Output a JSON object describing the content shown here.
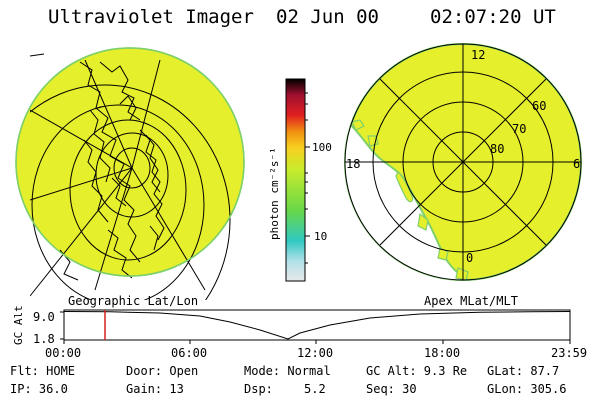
{
  "header": {
    "instrument": "Ultraviolet Imager",
    "date": "02 Jun 00",
    "time": "02:07:20 UT"
  },
  "left_panel": {
    "caption": "Geographic Lat/Lon"
  },
  "right_panel": {
    "caption": "Apex MLat/MLT",
    "lat_labels": [
      "60",
      "70",
      "80"
    ],
    "mlt_labels": [
      "12",
      "18",
      "6",
      "0"
    ]
  },
  "colorbar": {
    "unit_label": "photon cm⁻²s⁻¹",
    "tick_labels": [
      "100",
      "10"
    ]
  },
  "timeline": {
    "ylabel": "GC Alt",
    "y_ticks": [
      "9.0",
      "1.8"
    ],
    "x_ticks": [
      "00:00",
      "06:00",
      "12:00",
      "18:00",
      "23:59"
    ],
    "marker_time": "02:07"
  },
  "status": {
    "flt": "Flt: HOME",
    "ip": "IP: 36.0",
    "door": "Door: Open",
    "gain": "Gain: 13",
    "mode": "Mode: Normal",
    "dsp_label": "Dsp:",
    "dsp_value": "5.2",
    "gc_alt": "GC Alt: 9.3 Re",
    "seq": "Seq: 30",
    "glat": "GLat: 87.7",
    "glon": "GLon: 305.6"
  },
  "colors": {
    "image_fill": "#e6ef2c",
    "image_edge": "#7fd06a",
    "marker": "#d42020",
    "colorbar_stops": [
      "#e8e8e8",
      "#b0e0e8",
      "#30c8c0",
      "#68d848",
      "#c8ec2c",
      "#f8d020",
      "#f09010",
      "#e02020",
      "#a01030",
      "#000000"
    ]
  }
}
